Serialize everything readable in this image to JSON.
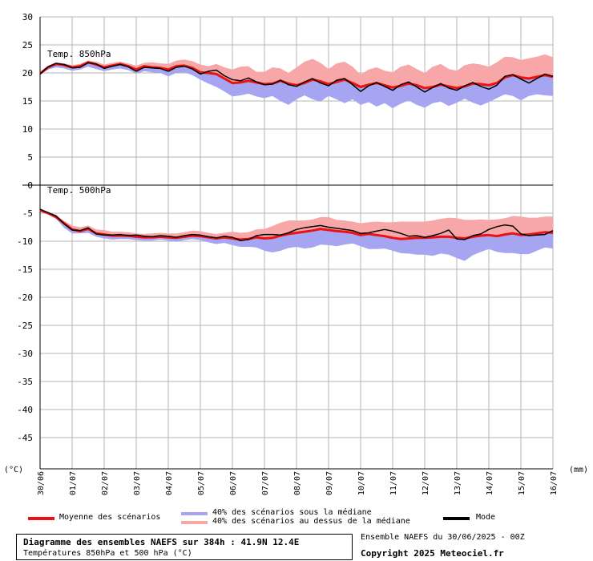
{
  "chart_data": {
    "type": "line",
    "unit_left": "(°C)",
    "unit_right": "(mm)",
    "y_ticks": [
      30,
      25,
      20,
      15,
      10,
      5,
      0,
      -5,
      -10,
      -15,
      -20,
      -25,
      -30,
      -35,
      -40,
      -45
    ],
    "ylim": [
      -52,
      30
    ],
    "x_ticks": [
      "30/06",
      "01/07",
      "02/07",
      "03/07",
      "04/07",
      "05/07",
      "06/07",
      "07/07",
      "08/07",
      "09/07",
      "10/07",
      "11/07",
      "12/07",
      "13/07",
      "14/07",
      "15/07",
      "16/07"
    ],
    "x_days": [
      0,
      16
    ],
    "panels": [
      {
        "label": "Temp. 850hPa",
        "x": [
          0,
          0.25,
          0.5,
          0.75,
          1,
          1.25,
          1.5,
          1.75,
          2,
          2.25,
          2.5,
          2.75,
          3,
          3.25,
          3.5,
          3.75,
          4,
          4.25,
          4.5,
          4.75,
          5,
          5.25,
          5.5,
          5.75,
          6,
          6.25,
          6.5,
          6.75,
          7,
          7.25,
          7.5,
          7.75,
          8,
          8.25,
          8.5,
          8.75,
          9,
          9.25,
          9.5,
          9.75,
          10,
          10.25,
          10.5,
          10.75,
          11,
          11.25,
          11.5,
          11.75,
          12,
          12.25,
          12.5,
          12.75,
          13,
          13.25,
          13.5,
          13.75,
          14,
          14.25,
          14.5,
          14.75,
          15,
          15.25,
          15.5,
          15.75,
          16
        ],
        "series": [
          {
            "name": "Moyenne des scénarios",
            "role": "mean",
            "values": [
              19.9,
              21.0,
              21.6,
              21.4,
              21.0,
              21.2,
              21.9,
              21.5,
              21.0,
              21.3,
              21.6,
              21.2,
              20.6,
              21.2,
              21.0,
              20.9,
              20.6,
              21.2,
              21.3,
              20.9,
              20.1,
              20.0,
              19.8,
              19.0,
              18.2,
              18.3,
              18.6,
              18.3,
              18.0,
              18.1,
              18.6,
              18.1,
              17.8,
              18.2,
              18.8,
              18.5,
              18.0,
              18.4,
              18.8,
              18.2,
              17.5,
              17.9,
              18.2,
              17.8,
              17.4,
              17.7,
              18.1,
              17.8,
              17.3,
              17.5,
              17.9,
              17.6,
              17.3,
              17.6,
              18.1,
              18.0,
              17.8,
              18.2,
              19.2,
              19.6,
              19.2,
              19.0,
              19.3,
              19.6,
              19.3
            ]
          },
          {
            "name": "Mode",
            "role": "mode",
            "values": [
              19.8,
              21.1,
              21.7,
              21.5,
              20.9,
              21.0,
              21.8,
              21.6,
              20.8,
              21.2,
              21.5,
              21.1,
              20.3,
              21.0,
              20.9,
              20.8,
              20.3,
              21.0,
              21.2,
              20.7,
              19.8,
              20.3,
              20.5,
              19.5,
              18.8,
              18.6,
              19.1,
              18.4,
              17.9,
              18.0,
              18.7,
              17.9,
              17.6,
              18.4,
              19.0,
              18.2,
              17.7,
              18.7,
              19.0,
              17.9,
              16.7,
              17.7,
              18.3,
              17.6,
              16.9,
              17.9,
              18.4,
              17.5,
              16.6,
              17.4,
              18.1,
              17.3,
              16.9,
              17.7,
              18.3,
              17.6,
              17.1,
              17.8,
              19.4,
              19.7,
              18.9,
              18.2,
              19.0,
              19.8,
              19.4
            ]
          },
          {
            "name": "40% des scénarios sous la médiane",
            "role": "lower",
            "values": [
              19.7,
              20.6,
              21.0,
              20.8,
              20.4,
              20.6,
              21.1,
              20.7,
              20.3,
              20.6,
              20.8,
              20.5,
              19.9,
              20.3,
              20.1,
              20.0,
              19.4,
              20.0,
              20.1,
              19.6,
              18.8,
              18.1,
              17.5,
              16.7,
              15.8,
              16.0,
              16.3,
              15.8,
              15.5,
              15.9,
              15.0,
              14.3,
              15.3,
              16.0,
              15.3,
              14.9,
              15.9,
              15.3,
              14.6,
              15.3,
              14.3,
              14.8,
              14.0,
              14.6,
              13.7,
              14.5,
              15.1,
              14.3,
              13.8,
              14.6,
              14.9,
              14.1,
              14.7,
              15.4,
              14.7,
              14.2,
              14.8,
              15.5,
              16.2,
              15.9,
              15.1,
              15.9,
              16.2,
              16.0,
              15.9
            ]
          },
          {
            "name": "40% des scénarios au dessus de la médiane",
            "role": "upper",
            "values": [
              20.0,
              21.3,
              21.9,
              21.7,
              21.4,
              21.6,
              22.2,
              22.0,
              21.5,
              21.8,
              22.0,
              21.7,
              21.3,
              21.8,
              21.9,
              21.7,
              21.6,
              22.2,
              22.4,
              22.1,
              21.5,
              21.2,
              21.6,
              21.0,
              20.6,
              21.1,
              21.2,
              20.2,
              20.2,
              21.0,
              20.8,
              20.0,
              21.0,
              22.0,
              22.5,
              21.8,
              20.7,
              21.7,
              22.0,
              21.1,
              19.7,
              20.6,
              21.0,
              20.4,
              20.1,
              21.1,
              21.5,
              20.7,
              20.0,
              21.1,
              21.6,
              20.7,
              20.4,
              21.4,
              21.7,
              21.5,
              21.1,
              21.9,
              22.9,
              22.8,
              22.3,
              22.6,
              22.9,
              23.3,
              22.8
            ]
          }
        ]
      },
      {
        "label": "Temp. 500hPa",
        "x": [
          0,
          0.25,
          0.5,
          0.75,
          1,
          1.25,
          1.5,
          1.75,
          2,
          2.25,
          2.5,
          2.75,
          3,
          3.25,
          3.5,
          3.75,
          4,
          4.25,
          4.5,
          4.75,
          5,
          5.25,
          5.5,
          5.75,
          6,
          6.25,
          6.5,
          6.75,
          7,
          7.25,
          7.5,
          7.75,
          8,
          8.25,
          8.5,
          8.75,
          9,
          9.25,
          9.5,
          9.75,
          10,
          10.25,
          10.5,
          10.75,
          11,
          11.25,
          11.5,
          11.75,
          12,
          12.25,
          12.5,
          12.75,
          13,
          13.25,
          13.5,
          13.75,
          14,
          14.25,
          14.5,
          14.75,
          15,
          15.25,
          15.5,
          15.75,
          16
        ],
        "series": [
          {
            "name": "Moyenne des scénarios",
            "role": "mean",
            "values": [
              -4.5,
              -5.0,
              -5.7,
              -6.8,
              -7.9,
              -8.2,
              -7.8,
              -8.6,
              -8.8,
              -9.0,
              -9.0,
              -9.0,
              -9.2,
              -9.3,
              -9.3,
              -9.2,
              -9.3,
              -9.4,
              -9.2,
              -9.0,
              -9.1,
              -9.3,
              -9.5,
              -9.3,
              -9.5,
              -9.7,
              -9.6,
              -9.3,
              -9.5,
              -9.4,
              -9.0,
              -8.7,
              -8.5,
              -8.3,
              -8.1,
              -7.8,
              -8.0,
              -8.2,
              -8.3,
              -8.5,
              -8.9,
              -8.7,
              -8.9,
              -9.1,
              -9.4,
              -9.6,
              -9.5,
              -9.4,
              -9.4,
              -9.3,
              -9.2,
              -9.2,
              -9.4,
              -9.5,
              -9.2,
              -9.0,
              -8.9,
              -9.1,
              -8.8,
              -8.6,
              -8.9,
              -8.8,
              -8.6,
              -8.4,
              -8.5
            ]
          },
          {
            "name": "Mode",
            "role": "mode",
            "values": [
              -4.3,
              -4.9,
              -5.5,
              -6.9,
              -8.0,
              -8.1,
              -7.6,
              -8.7,
              -8.9,
              -8.9,
              -8.8,
              -9.0,
              -8.9,
              -9.1,
              -9.2,
              -9.0,
              -9.1,
              -9.3,
              -9.0,
              -8.8,
              -8.9,
              -9.2,
              -9.4,
              -9.1,
              -9.3,
              -9.9,
              -9.7,
              -9.0,
              -8.8,
              -8.8,
              -8.9,
              -8.5,
              -7.9,
              -7.6,
              -7.4,
              -7.2,
              -7.5,
              -7.7,
              -7.9,
              -8.1,
              -8.6,
              -8.5,
              -8.2,
              -7.9,
              -8.2,
              -8.6,
              -9.1,
              -9.0,
              -9.3,
              -9.0,
              -8.6,
              -8.0,
              -9.6,
              -9.7,
              -9.0,
              -8.7,
              -7.9,
              -7.4,
              -7.1,
              -7.3,
              -8.7,
              -9.0,
              -8.9,
              -8.8,
              -8.1
            ]
          },
          {
            "name": "40% des scénarios sous la médiane",
            "role": "lower",
            "values": [
              -4.5,
              -5.2,
              -6.0,
              -7.6,
              -8.6,
              -8.6,
              -8.5,
              -9.2,
              -9.5,
              -9.7,
              -9.6,
              -9.6,
              -9.8,
              -9.9,
              -9.9,
              -9.7,
              -9.9,
              -10.1,
              -9.8,
              -9.6,
              -9.8,
              -10.2,
              -10.5,
              -10.3,
              -10.7,
              -11.0,
              -11.0,
              -11.1,
              -11.7,
              -12.0,
              -11.7,
              -11.2,
              -11.0,
              -11.3,
              -11.1,
              -10.6,
              -10.7,
              -10.9,
              -10.6,
              -10.4,
              -10.9,
              -11.4,
              -11.4,
              -11.3,
              -11.7,
              -12.1,
              -12.2,
              -12.4,
              -12.4,
              -12.6,
              -12.2,
              -12.4,
              -13.0,
              -13.5,
              -12.5,
              -11.9,
              -11.4,
              -11.9,
              -12.1,
              -12.1,
              -12.3,
              -12.3,
              -11.7,
              -11.1,
              -11.3
            ]
          },
          {
            "name": "40% des scénarios au dessus de la médiane",
            "role": "upper",
            "values": [
              -4.3,
              -4.8,
              -5.3,
              -6.4,
              -7.2,
              -7.5,
              -7.2,
              -7.9,
              -8.0,
              -8.3,
              -8.3,
              -8.4,
              -8.6,
              -8.7,
              -8.6,
              -8.5,
              -8.6,
              -8.6,
              -8.4,
              -8.1,
              -8.2,
              -8.5,
              -8.7,
              -8.5,
              -8.3,
              -8.5,
              -8.4,
              -7.9,
              -7.8,
              -7.3,
              -6.7,
              -6.3,
              -6.3,
              -6.3,
              -6.1,
              -5.7,
              -5.7,
              -6.2,
              -6.3,
              -6.5,
              -6.8,
              -6.6,
              -6.5,
              -6.6,
              -6.6,
              -6.5,
              -6.5,
              -6.5,
              -6.5,
              -6.3,
              -6.0,
              -5.8,
              -5.9,
              -6.2,
              -6.2,
              -6.1,
              -6.2,
              -6.1,
              -5.9,
              -5.5,
              -5.6,
              -5.8,
              -5.8,
              -5.6,
              -5.6
            ]
          }
        ]
      }
    ]
  },
  "legend": {
    "mean": "Moyenne des scénarios",
    "lower": "40% des scénarios sous la médiane",
    "upper": "40% des scénarios au dessus de la médiane",
    "mode": "Mode"
  },
  "colors": {
    "mean": "#ee1111",
    "mode": "#000000",
    "lower_band": "#a5a5f2",
    "upper_band": "#f7a7a7",
    "grid": "#b4b4b4"
  },
  "footer": {
    "title": "Diagramme des ensembles NAEFS sur 384h : 41.9N 12.4E",
    "subtitle": "Températures 850hPa et 500 hPa (°C)",
    "run": "Ensemble NAEFS du 30/06/2025 - 00Z",
    "copyright": "Copyright 2025 Meteociel.fr"
  }
}
